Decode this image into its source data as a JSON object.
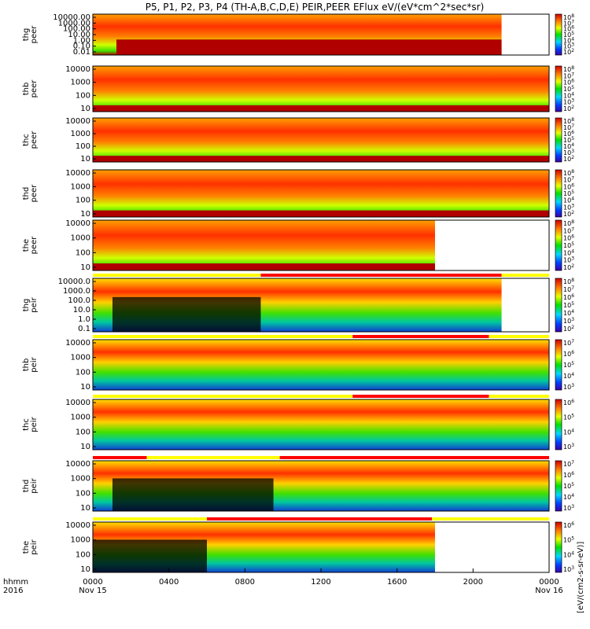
{
  "title": "P5, P1, P2, P3, P4 (TH-A,B,C,D,E) PEIR,PEER EFlux eV/(eV*cm^2*sec*sr)",
  "colorbar_label": "[eV/(cm2-s-sr-eV)]",
  "chart_data": [
    {
      "type": "heatmap",
      "probe": "thg",
      "ylabel": "thg peer",
      "scale": "log",
      "y_ticks": [
        "10000.00",
        "1000.00",
        "100.00",
        "10.00",
        "1.00",
        "0.10",
        "0.01"
      ],
      "data_end": "2130",
      "cbar_ticks": [
        "10^8",
        "10^7",
        "10^6",
        "10^5",
        "10^4",
        "10^3",
        "10^2"
      ]
    },
    {
      "type": "heatmap",
      "probe": "thb",
      "ylabel": "thb peer",
      "scale": "log",
      "y_ticks": [
        "10000",
        "1000",
        "100",
        "10"
      ],
      "data_end": "2400",
      "cbar_ticks": [
        "10^8",
        "10^7",
        "10^6",
        "10^5",
        "10^4",
        "10^3",
        "10^2"
      ]
    },
    {
      "type": "heatmap",
      "probe": "thc",
      "ylabel": "thc peer",
      "scale": "log",
      "y_ticks": [
        "10000",
        "1000",
        "100",
        "10"
      ],
      "data_end": "2400",
      "cbar_ticks": [
        "10^8",
        "10^7",
        "10^6",
        "10^5",
        "10^4",
        "10^3",
        "10^2"
      ]
    },
    {
      "type": "heatmap",
      "probe": "thd",
      "ylabel": "thd peer",
      "scale": "log",
      "y_ticks": [
        "10000",
        "1000",
        "100",
        "10"
      ],
      "data_end": "2400",
      "cbar_ticks": [
        "10^8",
        "10^7",
        "10^6",
        "10^5",
        "10^4",
        "10^3",
        "10^2"
      ]
    },
    {
      "type": "heatmap",
      "probe": "the",
      "ylabel": "the peer",
      "scale": "log",
      "y_ticks": [
        "10000",
        "1000",
        "100",
        "10"
      ],
      "data_end": "1800",
      "cbar_ticks": [
        "10^8",
        "10^7",
        "10^6",
        "10^5",
        "10^4",
        "10^3",
        "10^2"
      ]
    },
    {
      "type": "heatmap",
      "probe": "thg",
      "ylabel": "thg peir",
      "scale": "log",
      "y_ticks": [
        "10000.0",
        "1000.0",
        "100.0",
        "10.0",
        "1.0",
        "0.1"
      ],
      "data_end": "2130",
      "cbar_ticks": [
        "10^8",
        "10^7",
        "10^6",
        "10^5",
        "10^4",
        "10^3",
        "10^2"
      ],
      "mode_bar": [
        {
          "start": "0000",
          "end": "0850",
          "color": "#ffff00"
        },
        {
          "start": "0850",
          "end": "2130",
          "color": "#ff0000"
        },
        {
          "start": "2130",
          "end": "2400",
          "color": "#ffff00"
        }
      ]
    },
    {
      "type": "heatmap",
      "probe": "thb",
      "ylabel": "thb peir",
      "scale": "log",
      "y_ticks": [
        "10000",
        "1000",
        "100",
        "10"
      ],
      "data_end": "2400",
      "cbar_ticks": [
        "10^7",
        "10^6",
        "10^5",
        "10^4",
        "10^3"
      ],
      "mode_bar": [
        {
          "start": "0000",
          "end": "1340",
          "color": "#ffff00"
        },
        {
          "start": "1340",
          "end": "2050",
          "color": "#ff0000"
        },
        {
          "start": "2050",
          "end": "2400",
          "color": "#ffff00"
        }
      ]
    },
    {
      "type": "heatmap",
      "probe": "thc",
      "ylabel": "thc peir",
      "scale": "log",
      "y_ticks": [
        "10000",
        "1000",
        "100",
        "10"
      ],
      "data_end": "2400",
      "cbar_ticks": [
        "10^6",
        "10^5",
        "10^4",
        "10^3"
      ],
      "mode_bar": [
        {
          "start": "0000",
          "end": "1340",
          "color": "#ffff00"
        },
        {
          "start": "1340",
          "end": "2050",
          "color": "#ff0000"
        },
        {
          "start": "2050",
          "end": "2400",
          "color": "#ffff00"
        }
      ]
    },
    {
      "type": "heatmap",
      "probe": "thd",
      "ylabel": "thd peir",
      "scale": "log",
      "y_ticks": [
        "10000",
        "1000",
        "100",
        "10"
      ],
      "data_end": "2400",
      "cbar_ticks": [
        "10^7",
        "10^6",
        "10^5",
        "10^4",
        "10^3"
      ],
      "mode_bar": [
        {
          "start": "0000",
          "end": "0250",
          "color": "#ff0000"
        },
        {
          "start": "0250",
          "end": "0950",
          "color": "#ffff00"
        },
        {
          "start": "0950",
          "end": "2400",
          "color": "#ff0000"
        }
      ]
    },
    {
      "type": "heatmap",
      "probe": "the",
      "ylabel": "the peir",
      "scale": "log",
      "y_ticks": [
        "10000",
        "1000",
        "100",
        "10"
      ],
      "data_end": "1800",
      "cbar_ticks": [
        "10^6",
        "10^5",
        "10^4",
        "10^3"
      ],
      "mode_bar": [
        {
          "start": "0000",
          "end": "0600",
          "color": "#ffff00"
        },
        {
          "start": "0600",
          "end": "1750",
          "color": "#ff0000"
        },
        {
          "start": "1750",
          "end": "2400",
          "color": "#ffff00"
        }
      ]
    }
  ],
  "xaxis": {
    "row1_label": "hhmm",
    "row2_label": "2016",
    "ticks": [
      {
        "t": "0000",
        "sub": "Nov 15"
      },
      {
        "t": "0400",
        "sub": ""
      },
      {
        "t": "0800",
        "sub": ""
      },
      {
        "t": "1200",
        "sub": ""
      },
      {
        "t": "1600",
        "sub": ""
      },
      {
        "t": "2000",
        "sub": ""
      },
      {
        "t": "0000",
        "sub": "Nov 16"
      }
    ]
  }
}
